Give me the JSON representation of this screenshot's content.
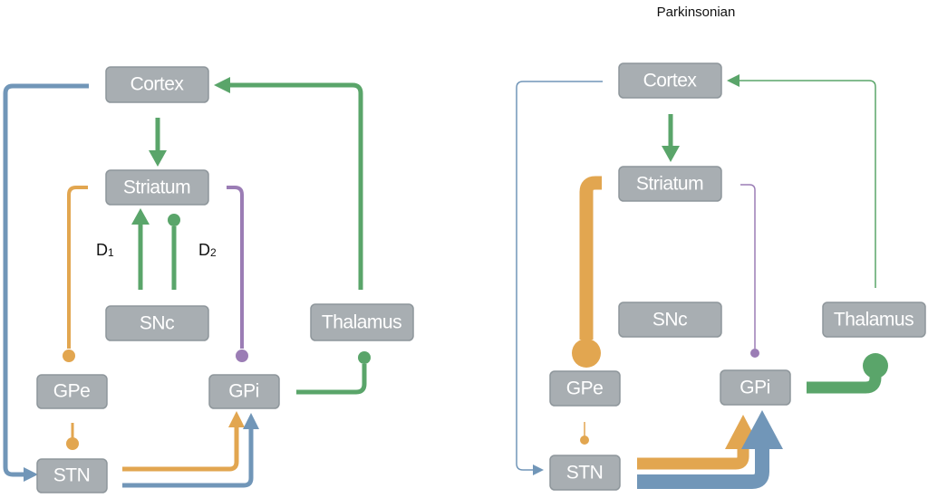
{
  "colors": {
    "green": "#5aa56a",
    "orange": "#e2a650",
    "blue": "#7196b8",
    "purple": "#9b7db5",
    "box_fill": "#a8aeb2"
  },
  "normal": {
    "title": "",
    "nodes": {
      "cortex": "Cortex",
      "striatum": "Striatum",
      "snc": "SNc",
      "thalamus": "Thalamus",
      "gpe": "GPe",
      "gpi": "GPi",
      "stn": "STN"
    },
    "d1_label": "D",
    "d1_sub": "1",
    "d2_label": "D",
    "d2_sub": "2"
  },
  "parkinsonian": {
    "title": "Parkinsonian",
    "nodes": {
      "cortex": "Cortex",
      "striatum": "Striatum",
      "snc": "SNc",
      "thalamus": "Thalamus",
      "gpe": "GPe",
      "gpi": "GPi",
      "stn": "STN"
    }
  }
}
